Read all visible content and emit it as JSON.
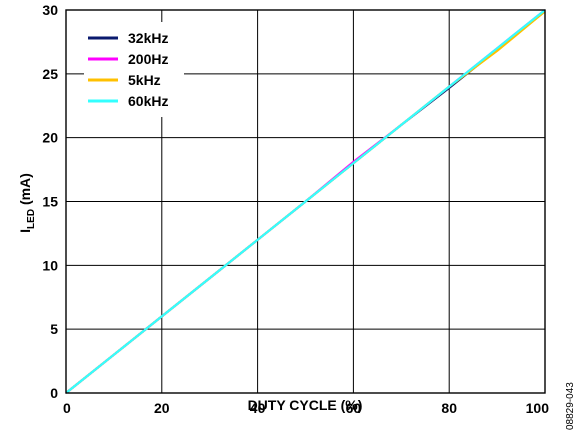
{
  "chart_data": {
    "type": "line",
    "xlabel": "DUTY CYCLE (%)",
    "ylabel_main": "I",
    "ylabel_sub": "LED",
    "ylabel_unit": " (mA)",
    "xlim": [
      0,
      100
    ],
    "ylim": [
      0,
      30
    ],
    "x_ticks": [
      "0",
      "20",
      "40",
      "60",
      "80",
      "100"
    ],
    "y_ticks": [
      "0",
      "5",
      "10",
      "15",
      "20",
      "25",
      "30"
    ],
    "grid": true,
    "legend_position": "top-left",
    "series": [
      {
        "name": "32kHz",
        "color": "#0a1a6e",
        "x": [
          0,
          10,
          20,
          30,
          40,
          50,
          60,
          70,
          80,
          90,
          100
        ],
        "y": [
          0,
          3.0,
          6.0,
          9.0,
          12.0,
          15.0,
          18.0,
          21.0,
          23.9,
          26.9,
          29.9
        ]
      },
      {
        "name": "200Hz",
        "color": "#ff00ff",
        "x": [
          0,
          10,
          20,
          30,
          40,
          50,
          60,
          70,
          80,
          90,
          100
        ],
        "y": [
          0,
          3.0,
          6.0,
          9.0,
          12.0,
          15.0,
          18.1,
          21.0,
          24.0,
          27.0,
          30.0
        ]
      },
      {
        "name": "5kHz",
        "color": "#ffc000",
        "x": [
          0,
          10,
          20,
          30,
          40,
          50,
          60,
          70,
          80,
          90,
          100
        ],
        "y": [
          0,
          3.0,
          6.0,
          9.0,
          12.0,
          15.0,
          18.0,
          21.0,
          24.0,
          26.8,
          29.9
        ]
      },
      {
        "name": "60kHz",
        "color": "#33ffff",
        "x": [
          0,
          10,
          20,
          30,
          40,
          50,
          60,
          70,
          80,
          90,
          100
        ],
        "y": [
          0,
          3.0,
          6.0,
          9.0,
          12.0,
          15.0,
          18.0,
          21.0,
          24.0,
          27.0,
          30.0
        ]
      }
    ]
  },
  "figure_id": "08829-043"
}
